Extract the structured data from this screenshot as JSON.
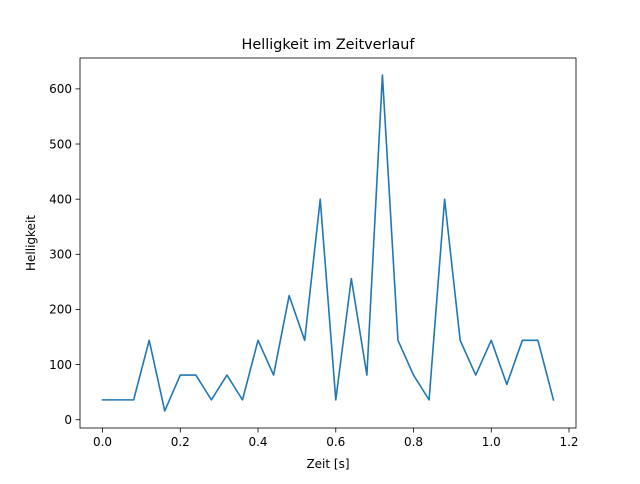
{
  "chart_data": {
    "type": "line",
    "title": "Helligkeit im Zeitverlauf",
    "xlabel": "Zeit [s]",
    "ylabel": "Helligkeit",
    "xlim": [
      -0.058,
      1.218
    ],
    "ylim": [
      -15,
      656
    ],
    "xticks": [
      0.0,
      0.2,
      0.4,
      0.6,
      0.8,
      1.0,
      1.2
    ],
    "xtick_labels": [
      "0.0",
      "0.2",
      "0.4",
      "0.6",
      "0.8",
      "1.0",
      "1.2"
    ],
    "yticks": [
      0,
      100,
      200,
      300,
      400,
      500,
      600
    ],
    "ytick_labels": [
      "0",
      "100",
      "200",
      "300",
      "400",
      "500",
      "600"
    ],
    "grid": false,
    "series": [
      {
        "color": "#1f77b4",
        "x": [
          0.0,
          0.04,
          0.08,
          0.12,
          0.16,
          0.2,
          0.24,
          0.28,
          0.32,
          0.36,
          0.4,
          0.44,
          0.48,
          0.52,
          0.56,
          0.6,
          0.64,
          0.68,
          0.72,
          0.76,
          0.8,
          0.84,
          0.88,
          0.92,
          0.96,
          1.0,
          1.04,
          1.08,
          1.12,
          1.16
        ],
        "y": [
          36,
          36,
          36,
          144,
          16,
          81,
          81,
          36,
          81,
          36,
          144,
          81,
          225,
          144,
          400,
          36,
          256,
          81,
          625,
          144,
          81,
          36,
          400,
          144,
          81,
          144,
          64,
          144,
          144,
          36
        ]
      }
    ]
  }
}
